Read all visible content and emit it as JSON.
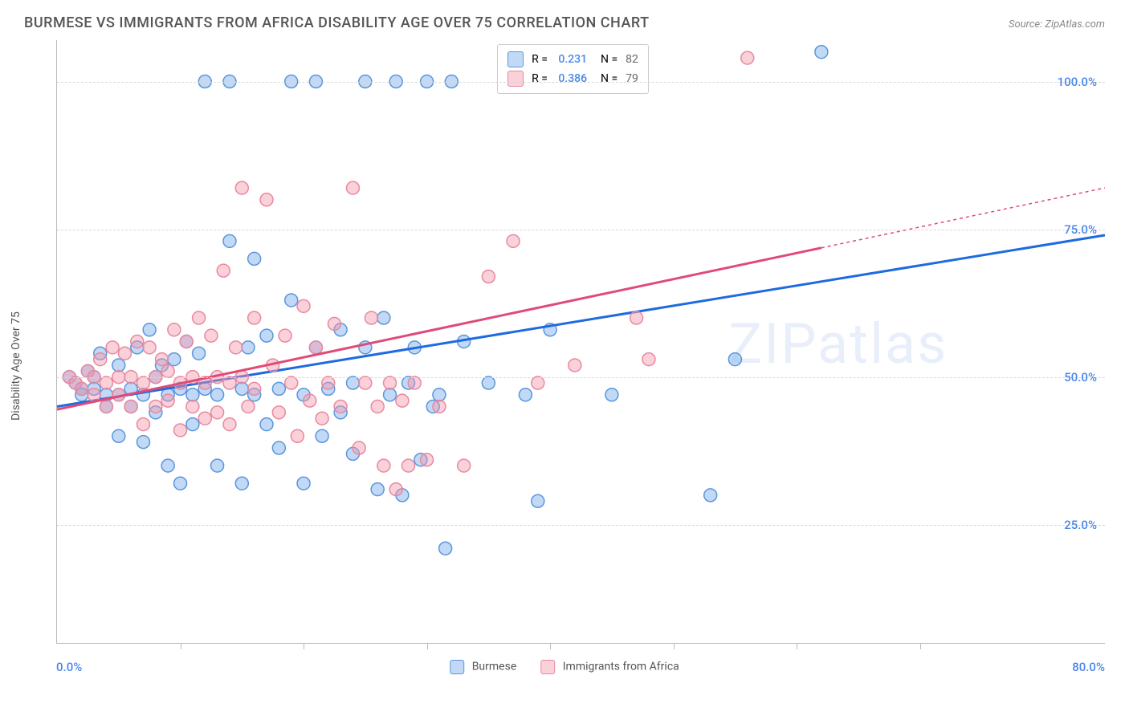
{
  "title": "BURMESE VS IMMIGRANTS FROM AFRICA DISABILITY AGE OVER 75 CORRELATION CHART",
  "source": "Source: ZipAtlas.com",
  "ylabel": "Disability Age Over 75",
  "watermark": "ZIPatlas",
  "chart": {
    "type": "scatter",
    "xlim": [
      0,
      85
    ],
    "ylim": [
      5,
      107
    ],
    "x_axis_labels": [
      {
        "x": 0,
        "text": "0.0%"
      },
      {
        "x": 80,
        "text": "80.0%"
      }
    ],
    "x_ticks": [
      10,
      20,
      30,
      40,
      50,
      60,
      70
    ],
    "y_gridlines": [
      {
        "y": 25,
        "text": "25.0%"
      },
      {
        "y": 50,
        "text": "50.0%"
      },
      {
        "y": 75,
        "text": "75.0%"
      },
      {
        "y": 100,
        "text": "100.0%"
      }
    ],
    "colors": {
      "burmese_fill": "rgba(118,170,235,0.45)",
      "burmese_stroke": "#5a96db",
      "burmese_line": "#1e6ae0",
      "africa_fill": "rgba(245,150,170,0.45)",
      "africa_stroke": "#e889a0",
      "africa_line": "#e04a78",
      "grid": "#d8d8d8",
      "axis_label": "#4a86e8"
    },
    "marker_radius": 8,
    "line_width": 3,
    "series": [
      {
        "name": "Burmese",
        "color_key": "burmese",
        "R": "0.231",
        "N": "82",
        "trend": {
          "x1": 0,
          "y1": 45,
          "x2": 85,
          "y2": 74,
          "dashed_from": null
        },
        "points": [
          [
            1,
            50
          ],
          [
            1.5,
            49
          ],
          [
            2,
            48
          ],
          [
            2,
            47
          ],
          [
            2.5,
            51
          ],
          [
            3,
            50
          ],
          [
            3,
            48
          ],
          [
            3.5,
            54
          ],
          [
            4,
            47
          ],
          [
            4,
            45
          ],
          [
            5,
            52
          ],
          [
            5,
            47
          ],
          [
            5,
            40
          ],
          [
            6,
            48
          ],
          [
            6,
            45
          ],
          [
            6.5,
            55
          ],
          [
            7,
            39
          ],
          [
            7,
            47
          ],
          [
            7.5,
            58
          ],
          [
            8,
            50
          ],
          [
            8,
            44
          ],
          [
            8.5,
            52
          ],
          [
            9,
            35
          ],
          [
            9,
            47
          ],
          [
            9.5,
            53
          ],
          [
            10,
            48
          ],
          [
            10,
            32
          ],
          [
            10.5,
            56
          ],
          [
            11,
            47
          ],
          [
            11,
            42
          ],
          [
            11.5,
            54
          ],
          [
            12,
            100
          ],
          [
            12,
            48
          ],
          [
            13,
            35
          ],
          [
            13,
            47
          ],
          [
            14,
            100
          ],
          [
            14,
            73
          ],
          [
            15,
            32
          ],
          [
            15,
            48
          ],
          [
            15.5,
            55
          ],
          [
            16,
            70
          ],
          [
            16,
            47
          ],
          [
            17,
            57
          ],
          [
            17,
            42
          ],
          [
            18,
            48
          ],
          [
            18,
            38
          ],
          [
            19,
            100
          ],
          [
            19,
            63
          ],
          [
            20,
            47
          ],
          [
            20,
            32
          ],
          [
            21,
            100
          ],
          [
            21,
            55
          ],
          [
            21.5,
            40
          ],
          [
            22,
            48
          ],
          [
            23,
            58
          ],
          [
            23,
            44
          ],
          [
            24,
            49
          ],
          [
            24,
            37
          ],
          [
            25,
            100
          ],
          [
            25,
            55
          ],
          [
            26,
            31
          ],
          [
            26.5,
            60
          ],
          [
            27,
            47
          ],
          [
            27.5,
            100
          ],
          [
            28,
            30
          ],
          [
            28.5,
            49
          ],
          [
            29,
            55
          ],
          [
            29.5,
            36
          ],
          [
            30,
            100
          ],
          [
            30.5,
            45
          ],
          [
            31,
            47
          ],
          [
            31.5,
            21
          ],
          [
            32,
            100
          ],
          [
            33,
            56
          ],
          [
            35,
            49
          ],
          [
            38,
            47
          ],
          [
            39,
            29
          ],
          [
            40,
            58
          ],
          [
            45,
            47
          ],
          [
            53,
            30
          ],
          [
            55,
            53
          ],
          [
            62,
            105
          ]
        ]
      },
      {
        "name": "Immigrants from Africa",
        "color_key": "africa",
        "R": "0.386",
        "N": "79",
        "trend": {
          "x1": 0,
          "y1": 44.5,
          "x2": 85,
          "y2": 82,
          "dashed_from": 62
        },
        "points": [
          [
            1,
            50
          ],
          [
            1.5,
            49
          ],
          [
            2,
            48
          ],
          [
            2.5,
            51
          ],
          [
            3,
            50
          ],
          [
            3,
            47
          ],
          [
            3.5,
            53
          ],
          [
            4,
            49
          ],
          [
            4,
            45
          ],
          [
            4.5,
            55
          ],
          [
            5,
            50
          ],
          [
            5,
            47
          ],
          [
            5.5,
            54
          ],
          [
            6,
            50
          ],
          [
            6,
            45
          ],
          [
            6.5,
            56
          ],
          [
            7,
            49
          ],
          [
            7,
            42
          ],
          [
            7.5,
            55
          ],
          [
            8,
            50
          ],
          [
            8,
            45
          ],
          [
            8.5,
            53
          ],
          [
            9,
            51
          ],
          [
            9,
            46
          ],
          [
            9.5,
            58
          ],
          [
            10,
            49
          ],
          [
            10,
            41
          ],
          [
            10.5,
            56
          ],
          [
            11,
            50
          ],
          [
            11,
            45
          ],
          [
            11.5,
            60
          ],
          [
            12,
            49
          ],
          [
            12,
            43
          ],
          [
            12.5,
            57
          ],
          [
            13,
            50
          ],
          [
            13,
            44
          ],
          [
            13.5,
            68
          ],
          [
            14,
            49
          ],
          [
            14,
            42
          ],
          [
            14.5,
            55
          ],
          [
            15,
            82
          ],
          [
            15,
            50
          ],
          [
            15.5,
            45
          ],
          [
            16,
            60
          ],
          [
            16,
            48
          ],
          [
            17,
            80
          ],
          [
            17.5,
            52
          ],
          [
            18,
            44
          ],
          [
            18.5,
            57
          ],
          [
            19,
            49
          ],
          [
            19.5,
            40
          ],
          [
            20,
            62
          ],
          [
            20.5,
            46
          ],
          [
            21,
            55
          ],
          [
            21.5,
            43
          ],
          [
            22,
            49
          ],
          [
            22.5,
            59
          ],
          [
            23,
            45
          ],
          [
            24,
            82
          ],
          [
            24.5,
            38
          ],
          [
            25,
            49
          ],
          [
            25.5,
            60
          ],
          [
            26,
            45
          ],
          [
            26.5,
            35
          ],
          [
            27,
            49
          ],
          [
            27.5,
            31
          ],
          [
            28,
            46
          ],
          [
            28.5,
            35
          ],
          [
            29,
            49
          ],
          [
            30,
            36
          ],
          [
            31,
            45
          ],
          [
            33,
            35
          ],
          [
            35,
            67
          ],
          [
            37,
            73
          ],
          [
            39,
            49
          ],
          [
            42,
            52
          ],
          [
            47,
            60
          ],
          [
            48,
            53
          ],
          [
            56,
            104
          ]
        ]
      }
    ],
    "bottom_legend": [
      {
        "swatch": "burmese",
        "label": "Burmese"
      },
      {
        "swatch": "africa",
        "label": "Immigrants from Africa"
      }
    ]
  }
}
